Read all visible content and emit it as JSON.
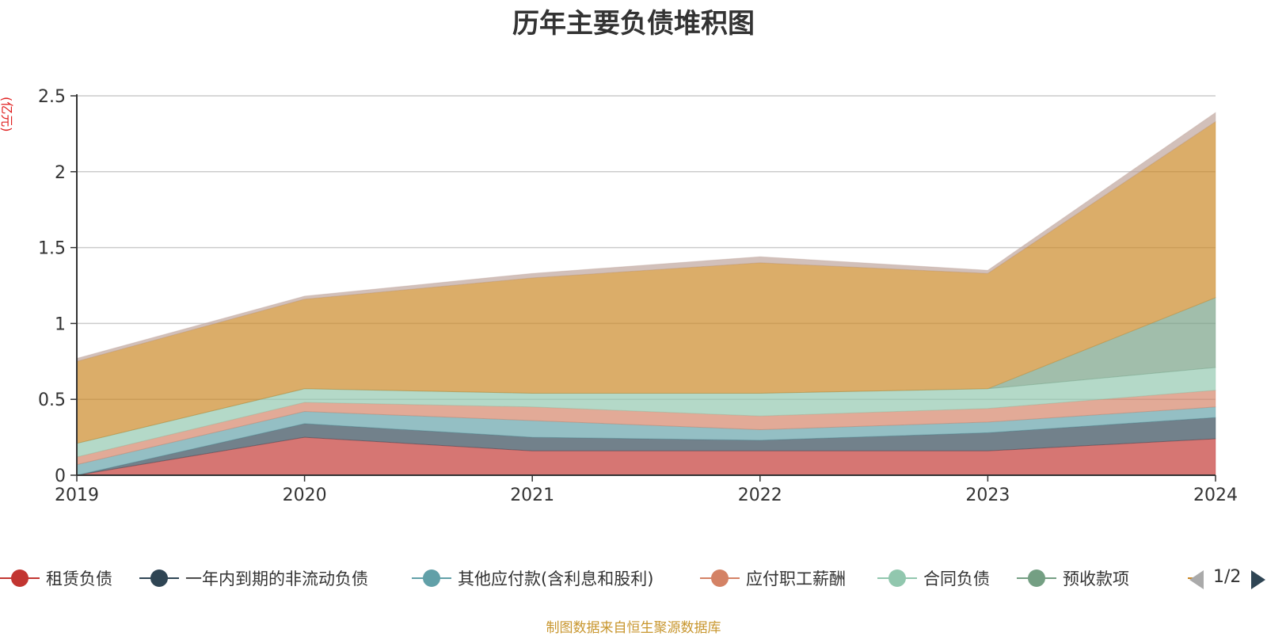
{
  "chart_data": {
    "type": "area",
    "stacked": true,
    "title": "历年主要负债堆积图",
    "unit_label": "(亿元)",
    "x": [
      "2019",
      "2020",
      "2021",
      "2022",
      "2023",
      "2024"
    ],
    "ylim": [
      0,
      2.5
    ],
    "yticks": [
      "0",
      "0.5",
      "1",
      "1.5",
      "2",
      "2.5"
    ],
    "grid": true,
    "legend_position": "bottom",
    "series": [
      {
        "name": "租赁负债",
        "color": "#c23531",
        "values": [
          0.0,
          0.25,
          0.16,
          0.16,
          0.16,
          0.24
        ]
      },
      {
        "name": "一年内到期的非流动负债",
        "color": "#2f4554",
        "values": [
          0.0,
          0.09,
          0.09,
          0.07,
          0.12,
          0.14
        ]
      },
      {
        "name": "其他应付款(含利息和股利)",
        "color": "#61a0a8",
        "values": [
          0.07,
          0.08,
          0.11,
          0.07,
          0.07,
          0.07
        ]
      },
      {
        "name": "应付职工薪酬",
        "color": "#d48265",
        "values": [
          0.05,
          0.06,
          0.09,
          0.09,
          0.09,
          0.11
        ]
      },
      {
        "name": "合同负债",
        "color": "#91c7ae",
        "values": [
          0.09,
          0.09,
          0.09,
          0.15,
          0.13,
          0.15
        ]
      },
      {
        "name": "预收款项",
        "color": "#749f83",
        "values": [
          0.0,
          0.0,
          0.0,
          0.0,
          0.0,
          0.46
        ]
      },
      {
        "name": "",
        "color": "#ca8622",
        "values": [
          0.54,
          0.59,
          0.76,
          0.86,
          0.76,
          1.16
        ]
      },
      {
        "name": "",
        "color": "#bda29a",
        "values": [
          0.02,
          0.02,
          0.03,
          0.04,
          0.02,
          0.06
        ]
      }
    ],
    "legend_page": "1/2"
  },
  "footer": {
    "source": "制图数据来自恒生聚源数据库"
  }
}
